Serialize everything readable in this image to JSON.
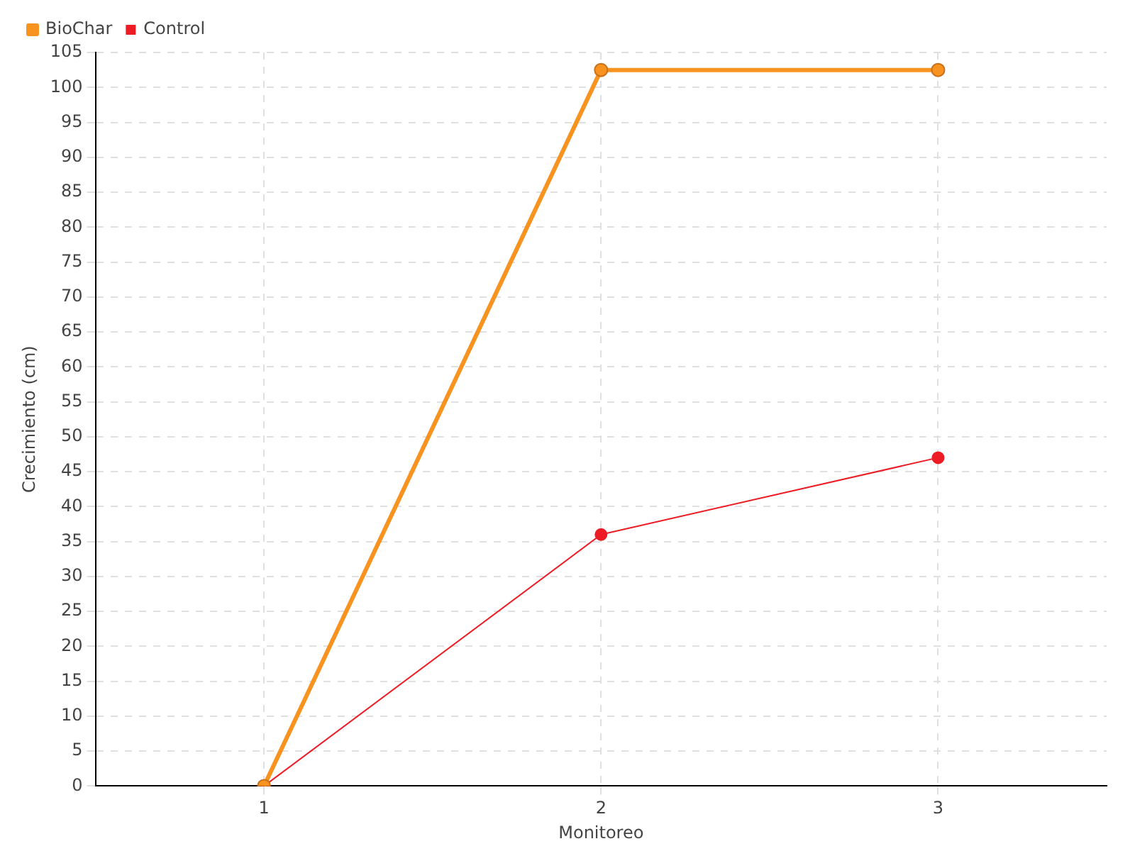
{
  "chart_data": {
    "type": "line",
    "xlabel": "Monitoreo",
    "ylabel": "Crecimiento (cm)",
    "categories": [
      "1",
      "2",
      "3"
    ],
    "series": [
      {
        "name": "BioChar",
        "color": "#f7931e",
        "values": [
          0,
          102.5,
          102.5
        ]
      },
      {
        "name": "Control",
        "color": "#ed1c24",
        "values": [
          0,
          36,
          47
        ]
      }
    ],
    "ylim": [
      0,
      105
    ],
    "yticks": [
      0,
      5,
      10,
      15,
      20,
      25,
      30,
      35,
      40,
      45,
      50,
      55,
      60,
      65,
      70,
      75,
      80,
      85,
      90,
      95,
      100,
      105
    ],
    "grid": true,
    "legend": "top left",
    "marker": "circle",
    "line_style": "solid"
  }
}
